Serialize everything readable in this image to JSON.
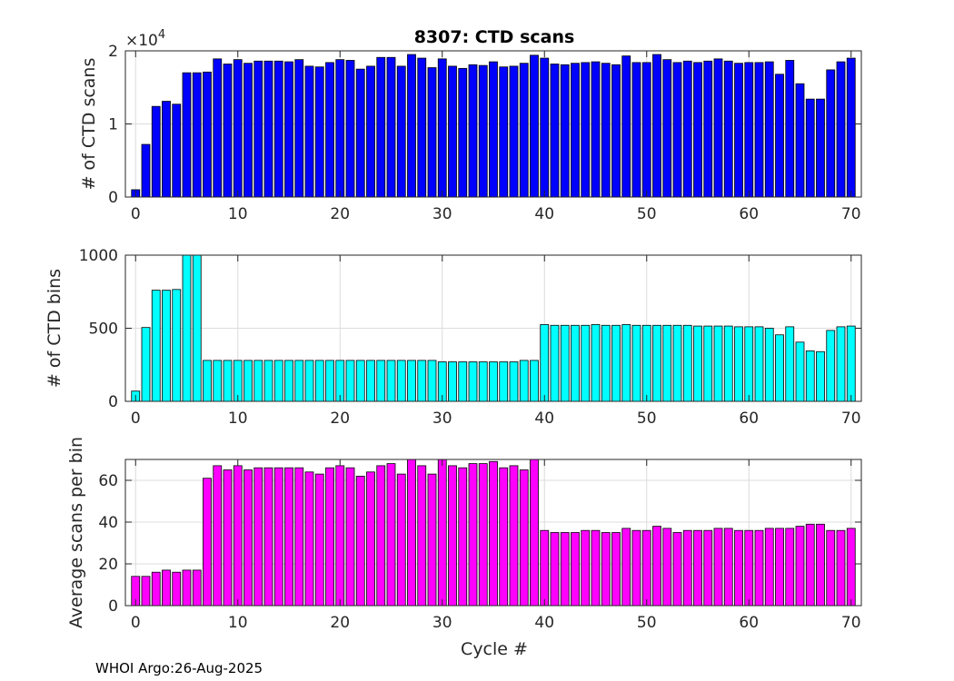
{
  "title": "8307: CTD scans",
  "footer": "WHOI Argo:26-Aug-2025",
  "xlabel": "Cycle #",
  "chart_data": [
    {
      "type": "bar",
      "ylabel": "# of CTD scans",
      "color": "#0000ff",
      "ylim": [
        0,
        20000
      ],
      "yticks": [
        0,
        10000,
        20000
      ],
      "ytick_labels": [
        "0",
        "1",
        "2"
      ],
      "exponent_label": "×10",
      "exponent_power": "4",
      "xlim": [
        -1,
        71
      ],
      "xticks": [
        0,
        10,
        20,
        30,
        40,
        50,
        60,
        70
      ],
      "x": [
        0,
        1,
        2,
        3,
        4,
        5,
        6,
        7,
        8,
        9,
        10,
        11,
        12,
        13,
        14,
        15,
        16,
        17,
        18,
        19,
        20,
        21,
        22,
        23,
        24,
        25,
        26,
        27,
        28,
        29,
        30,
        31,
        32,
        33,
        34,
        35,
        36,
        37,
        38,
        39,
        40,
        41,
        42,
        43,
        44,
        45,
        46,
        47,
        48,
        49,
        50,
        51,
        52,
        53,
        54,
        55,
        56,
        57,
        58,
        59,
        60,
        61,
        62,
        63,
        64,
        65,
        66,
        67,
        68,
        69,
        70
      ],
      "values": [
        1000,
        7200,
        12400,
        13100,
        12700,
        17000,
        17000,
        17100,
        18900,
        18200,
        18800,
        18300,
        18600,
        18600,
        18600,
        18500,
        18800,
        17900,
        17800,
        18400,
        18800,
        18700,
        17500,
        17900,
        19100,
        19100,
        17900,
        19500,
        19000,
        17700,
        18900,
        17900,
        17600,
        18100,
        18000,
        18500,
        17800,
        17900,
        18300,
        19400,
        19000,
        18200,
        18100,
        18300,
        18400,
        18500,
        18300,
        18100,
        19300,
        18400,
        18400,
        19500,
        18800,
        18400,
        18600,
        18400,
        18600,
        18900,
        18600,
        18300,
        18400,
        18400,
        18500,
        16800,
        18700,
        15500,
        13400,
        13400,
        17400,
        18500,
        19000
      ]
    },
    {
      "type": "bar",
      "ylabel": "# of CTD bins",
      "color": "#00ffff",
      "ylim": [
        0,
        1000
      ],
      "yticks": [
        0,
        500,
        1000
      ],
      "ytick_labels": [
        "0",
        "500",
        "1000"
      ],
      "xlim": [
        -1,
        71
      ],
      "xticks": [
        0,
        10,
        20,
        30,
        40,
        50,
        60,
        70
      ],
      "x": [
        0,
        1,
        2,
        3,
        4,
        5,
        6,
        7,
        8,
        9,
        10,
        11,
        12,
        13,
        14,
        15,
        16,
        17,
        18,
        19,
        20,
        21,
        22,
        23,
        24,
        25,
        26,
        27,
        28,
        29,
        30,
        31,
        32,
        33,
        34,
        35,
        36,
        37,
        38,
        39,
        40,
        41,
        42,
        43,
        44,
        45,
        46,
        47,
        48,
        49,
        50,
        51,
        52,
        53,
        54,
        55,
        56,
        57,
        58,
        59,
        60,
        61,
        62,
        63,
        64,
        65,
        66,
        67,
        68,
        69,
        70
      ],
      "values": [
        70,
        505,
        760,
        760,
        765,
        1000,
        1000,
        280,
        280,
        280,
        280,
        280,
        280,
        280,
        280,
        280,
        280,
        280,
        280,
        280,
        280,
        280,
        280,
        280,
        280,
        280,
        280,
        280,
        280,
        280,
        270,
        270,
        270,
        270,
        270,
        270,
        270,
        270,
        280,
        280,
        525,
        520,
        520,
        520,
        520,
        525,
        520,
        520,
        525,
        520,
        520,
        520,
        520,
        520,
        520,
        515,
        515,
        515,
        515,
        510,
        510,
        510,
        500,
        455,
        510,
        405,
        345,
        340,
        485,
        510,
        515
      ]
    },
    {
      "type": "bar",
      "ylabel": "Average scans per bin",
      "color": "#ff00ff",
      "ylim": [
        0,
        70
      ],
      "yticks": [
        0,
        20,
        40,
        60
      ],
      "ytick_labels": [
        "0",
        "20",
        "40",
        "60"
      ],
      "xlim": [
        -1,
        71
      ],
      "xticks": [
        0,
        10,
        20,
        30,
        40,
        50,
        60,
        70
      ],
      "x": [
        0,
        1,
        2,
        3,
        4,
        5,
        6,
        7,
        8,
        9,
        10,
        11,
        12,
        13,
        14,
        15,
        16,
        17,
        18,
        19,
        20,
        21,
        22,
        23,
        24,
        25,
        26,
        27,
        28,
        29,
        30,
        31,
        32,
        33,
        34,
        35,
        36,
        37,
        38,
        39,
        40,
        41,
        42,
        43,
        44,
        45,
        46,
        47,
        48,
        49,
        50,
        51,
        52,
        53,
        54,
        55,
        56,
        57,
        58,
        59,
        60,
        61,
        62,
        63,
        64,
        65,
        66,
        67,
        68,
        69,
        70
      ],
      "values": [
        14,
        14,
        16,
        17,
        16,
        17,
        17,
        61,
        67,
        65,
        67,
        65,
        66,
        66,
        66,
        66,
        66,
        64,
        63,
        66,
        67,
        66,
        62,
        64,
        67,
        68,
        63,
        70,
        67,
        63,
        70,
        67,
        66,
        68,
        68,
        69,
        66,
        67,
        65,
        70,
        36,
        35,
        35,
        35,
        36,
        36,
        35,
        35,
        37,
        36,
        36,
        38,
        37,
        35,
        36,
        36,
        36,
        37,
        37,
        36,
        36,
        36,
        37,
        37,
        37,
        38,
        39,
        39,
        36,
        36,
        37
      ]
    }
  ]
}
